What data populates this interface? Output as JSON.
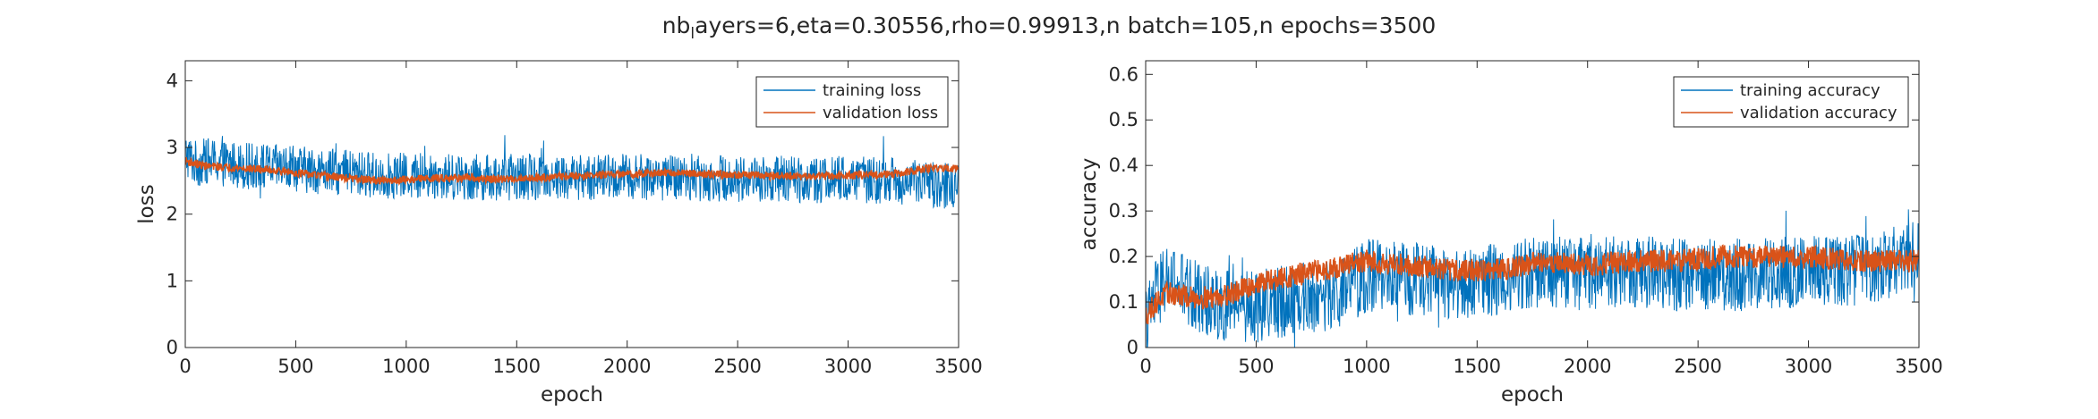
{
  "figure": {
    "title_prefix": "nb",
    "title_subscript": "l",
    "title_suffix": "ayers=6,eta=0.30556,rho=0.99913,n batch=105,n epochs=3500"
  },
  "colors": {
    "training": "#0072BD",
    "validation": "#D95319",
    "axis": "#262626"
  },
  "chart_data": [
    {
      "type": "line",
      "xlabel": "epoch",
      "ylabel": "loss",
      "xlim": [
        0,
        3500
      ],
      "ylim": [
        0,
        4.3
      ],
      "xticks": [
        0,
        500,
        1000,
        1500,
        2000,
        2500,
        3000,
        3500
      ],
      "yticks": [
        0,
        1,
        2,
        3,
        4
      ],
      "grid": false,
      "legend_position": "top-right",
      "series": [
        {
          "name": "training loss",
          "color": "#0072BD",
          "x": [
            0,
            50,
            100,
            200,
            300,
            400,
            500,
            600,
            700,
            800,
            900,
            1000,
            1200,
            1400,
            1600,
            1800,
            2000,
            2200,
            2400,
            2600,
            2800,
            3000,
            3200,
            3400,
            3500
          ],
          "y": [
            2.9,
            2.75,
            2.8,
            2.75,
            2.72,
            2.7,
            2.68,
            2.65,
            2.62,
            2.6,
            2.58,
            2.57,
            2.56,
            2.55,
            2.56,
            2.55,
            2.56,
            2.55,
            2.54,
            2.53,
            2.52,
            2.52,
            2.5,
            2.45,
            2.4
          ],
          "noise_amplitude": 0.35
        },
        {
          "name": "validation loss",
          "color": "#D95319",
          "x": [
            0,
            50,
            100,
            200,
            300,
            400,
            500,
            600,
            700,
            800,
            900,
            1000,
            1200,
            1400,
            1600,
            1800,
            2000,
            2200,
            2400,
            2600,
            2800,
            3000,
            3200,
            3400,
            3500
          ],
          "y": [
            2.8,
            2.75,
            2.72,
            2.7,
            2.68,
            2.66,
            2.62,
            2.58,
            2.55,
            2.52,
            2.5,
            2.52,
            2.55,
            2.52,
            2.55,
            2.58,
            2.6,
            2.62,
            2.6,
            2.58,
            2.56,
            2.58,
            2.6,
            2.7,
            2.68
          ],
          "noise_amplitude": 0.06
        }
      ]
    },
    {
      "type": "line",
      "xlabel": "epoch",
      "ylabel": "accuracy",
      "xlim": [
        0,
        3500
      ],
      "ylim": [
        0,
        0.63
      ],
      "xticks": [
        0,
        500,
        1000,
        1500,
        2000,
        2500,
        3000,
        3500
      ],
      "yticks": [
        0,
        0.1,
        0.2,
        0.3,
        0.4,
        0.5,
        0.6
      ],
      "grid": false,
      "legend_position": "top-right",
      "series": [
        {
          "name": "training accuracy",
          "color": "#0072BD",
          "x": [
            0,
            50,
            100,
            200,
            300,
            400,
            500,
            600,
            700,
            800,
            900,
            1000,
            1200,
            1400,
            1600,
            1800,
            2000,
            2200,
            2400,
            2600,
            2800,
            3000,
            3200,
            3400,
            3500
          ],
          "y": [
            0.05,
            0.12,
            0.15,
            0.12,
            0.1,
            0.09,
            0.09,
            0.1,
            0.11,
            0.11,
            0.12,
            0.16,
            0.15,
            0.14,
            0.15,
            0.17,
            0.16,
            0.17,
            0.16,
            0.16,
            0.16,
            0.17,
            0.17,
            0.19,
            0.22
          ],
          "noise_amplitude": 0.08
        },
        {
          "name": "validation accuracy",
          "color": "#D95319",
          "x": [
            0,
            50,
            100,
            200,
            300,
            400,
            500,
            600,
            700,
            800,
            900,
            1000,
            1200,
            1400,
            1600,
            1800,
            2000,
            2200,
            2400,
            2600,
            2800,
            3000,
            3200,
            3400,
            3500
          ],
          "y": [
            0.07,
            0.1,
            0.12,
            0.11,
            0.11,
            0.12,
            0.14,
            0.15,
            0.16,
            0.17,
            0.18,
            0.19,
            0.18,
            0.17,
            0.17,
            0.19,
            0.18,
            0.19,
            0.19,
            0.2,
            0.2,
            0.2,
            0.19,
            0.19,
            0.19
          ],
          "noise_amplitude": 0.025
        }
      ]
    }
  ]
}
